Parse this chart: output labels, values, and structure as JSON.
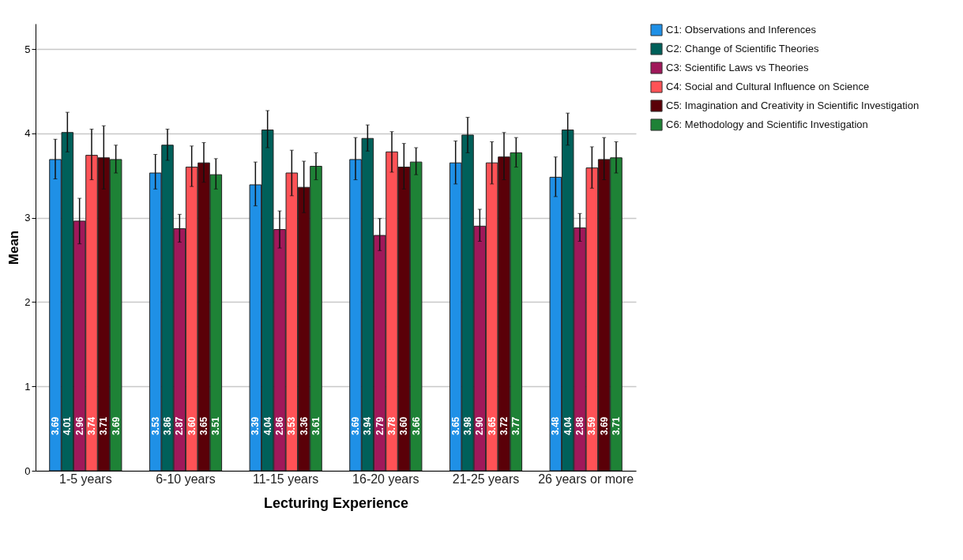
{
  "chart_data": {
    "type": "bar",
    "xlabel": "Lecturing Experience",
    "ylabel": "Mean",
    "categories": [
      "1-5 years",
      "6-10 years",
      "11-15 years",
      "16-20 years",
      "21-25 years",
      "26 years or more"
    ],
    "series": [
      {
        "name": "C1: Observations and Inferences",
        "color": "#1f90e6",
        "values": [
          3.69,
          3.53,
          3.39,
          3.69,
          3.65,
          3.48
        ],
        "value_labels": [
          "3.69",
          "3.53",
          "3.39",
          "3.69",
          "3.65",
          "3.48"
        ],
        "errors": [
          [
            3.46,
            3.93
          ],
          [
            3.34,
            3.75
          ],
          [
            3.14,
            3.66
          ],
          [
            3.45,
            3.95
          ],
          [
            3.4,
            3.91
          ],
          [
            3.25,
            3.72
          ]
        ]
      },
      {
        "name": "C2: Change of Scientific Theories",
        "color": "#00605a",
        "values": [
          4.01,
          3.86,
          4.04,
          3.94,
          3.98,
          4.04
        ],
        "value_labels": [
          "4.01",
          "3.86",
          "4.04",
          "3.94",
          "3.98",
          "4.04"
        ],
        "errors": [
          [
            3.78,
            4.25
          ],
          [
            3.68,
            4.05
          ],
          [
            3.83,
            4.27
          ],
          [
            3.79,
            4.1
          ],
          [
            3.77,
            4.19
          ],
          [
            3.86,
            4.24
          ]
        ]
      },
      {
        "name": "C3: Scientific Laws vs Theories",
        "color": "#a0185a",
        "values": [
          2.96,
          2.87,
          2.86,
          2.79,
          2.9,
          2.88
        ],
        "value_labels": [
          "2.96",
          "2.87",
          "2.86",
          "2.79",
          "2.90",
          "2.88"
        ],
        "errors": [
          [
            2.69,
            3.23
          ],
          [
            2.71,
            3.04
          ],
          [
            2.64,
            3.08
          ],
          [
            2.61,
            2.99
          ],
          [
            2.72,
            3.1
          ],
          [
            2.72,
            3.05
          ]
        ]
      },
      {
        "name": "C4: Social and Cultural Influence on Science",
        "color": "#ff5256",
        "values": [
          3.74,
          3.6,
          3.53,
          3.78,
          3.65,
          3.59
        ],
        "value_labels": [
          "3.74",
          "3.60",
          "3.53",
          "3.78",
          "3.65",
          "3.59"
        ],
        "errors": [
          [
            3.45,
            4.05
          ],
          [
            3.37,
            3.85
          ],
          [
            3.26,
            3.8
          ],
          [
            3.54,
            4.02
          ],
          [
            3.4,
            3.9
          ],
          [
            3.35,
            3.84
          ]
        ]
      },
      {
        "name": "C5: Imagination and Creativity in Scientific Investigation",
        "color": "#5a0008",
        "values": [
          3.71,
          3.65,
          3.36,
          3.6,
          3.72,
          3.69
        ],
        "value_labels": [
          "3.71",
          "3.65",
          "3.36",
          "3.60",
          "3.72",
          "3.69"
        ],
        "errors": [
          [
            3.34,
            4.09
          ],
          [
            3.42,
            3.89
          ],
          [
            3.06,
            3.67
          ],
          [
            3.34,
            3.88
          ],
          [
            3.45,
            4.01
          ],
          [
            3.45,
            3.95
          ]
        ]
      },
      {
        "name": "C6: Methodology and Scientific Investigation",
        "color": "#1e8236",
        "values": [
          3.69,
          3.51,
          3.61,
          3.66,
          3.77,
          3.71
        ],
        "value_labels": [
          "3.69",
          "3.51",
          "3.61",
          "3.66",
          "3.77",
          "3.71"
        ],
        "errors": [
          [
            3.53,
            3.86
          ],
          [
            3.34,
            3.7
          ],
          [
            3.45,
            3.77
          ],
          [
            3.51,
            3.83
          ],
          [
            3.6,
            3.95
          ],
          [
            3.53,
            3.9
          ]
        ]
      }
    ],
    "ylim": [
      0,
      5.3
    ],
    "yticks": [
      0,
      1,
      2,
      3,
      4,
      5
    ],
    "grid": "y",
    "legend": "top right"
  }
}
